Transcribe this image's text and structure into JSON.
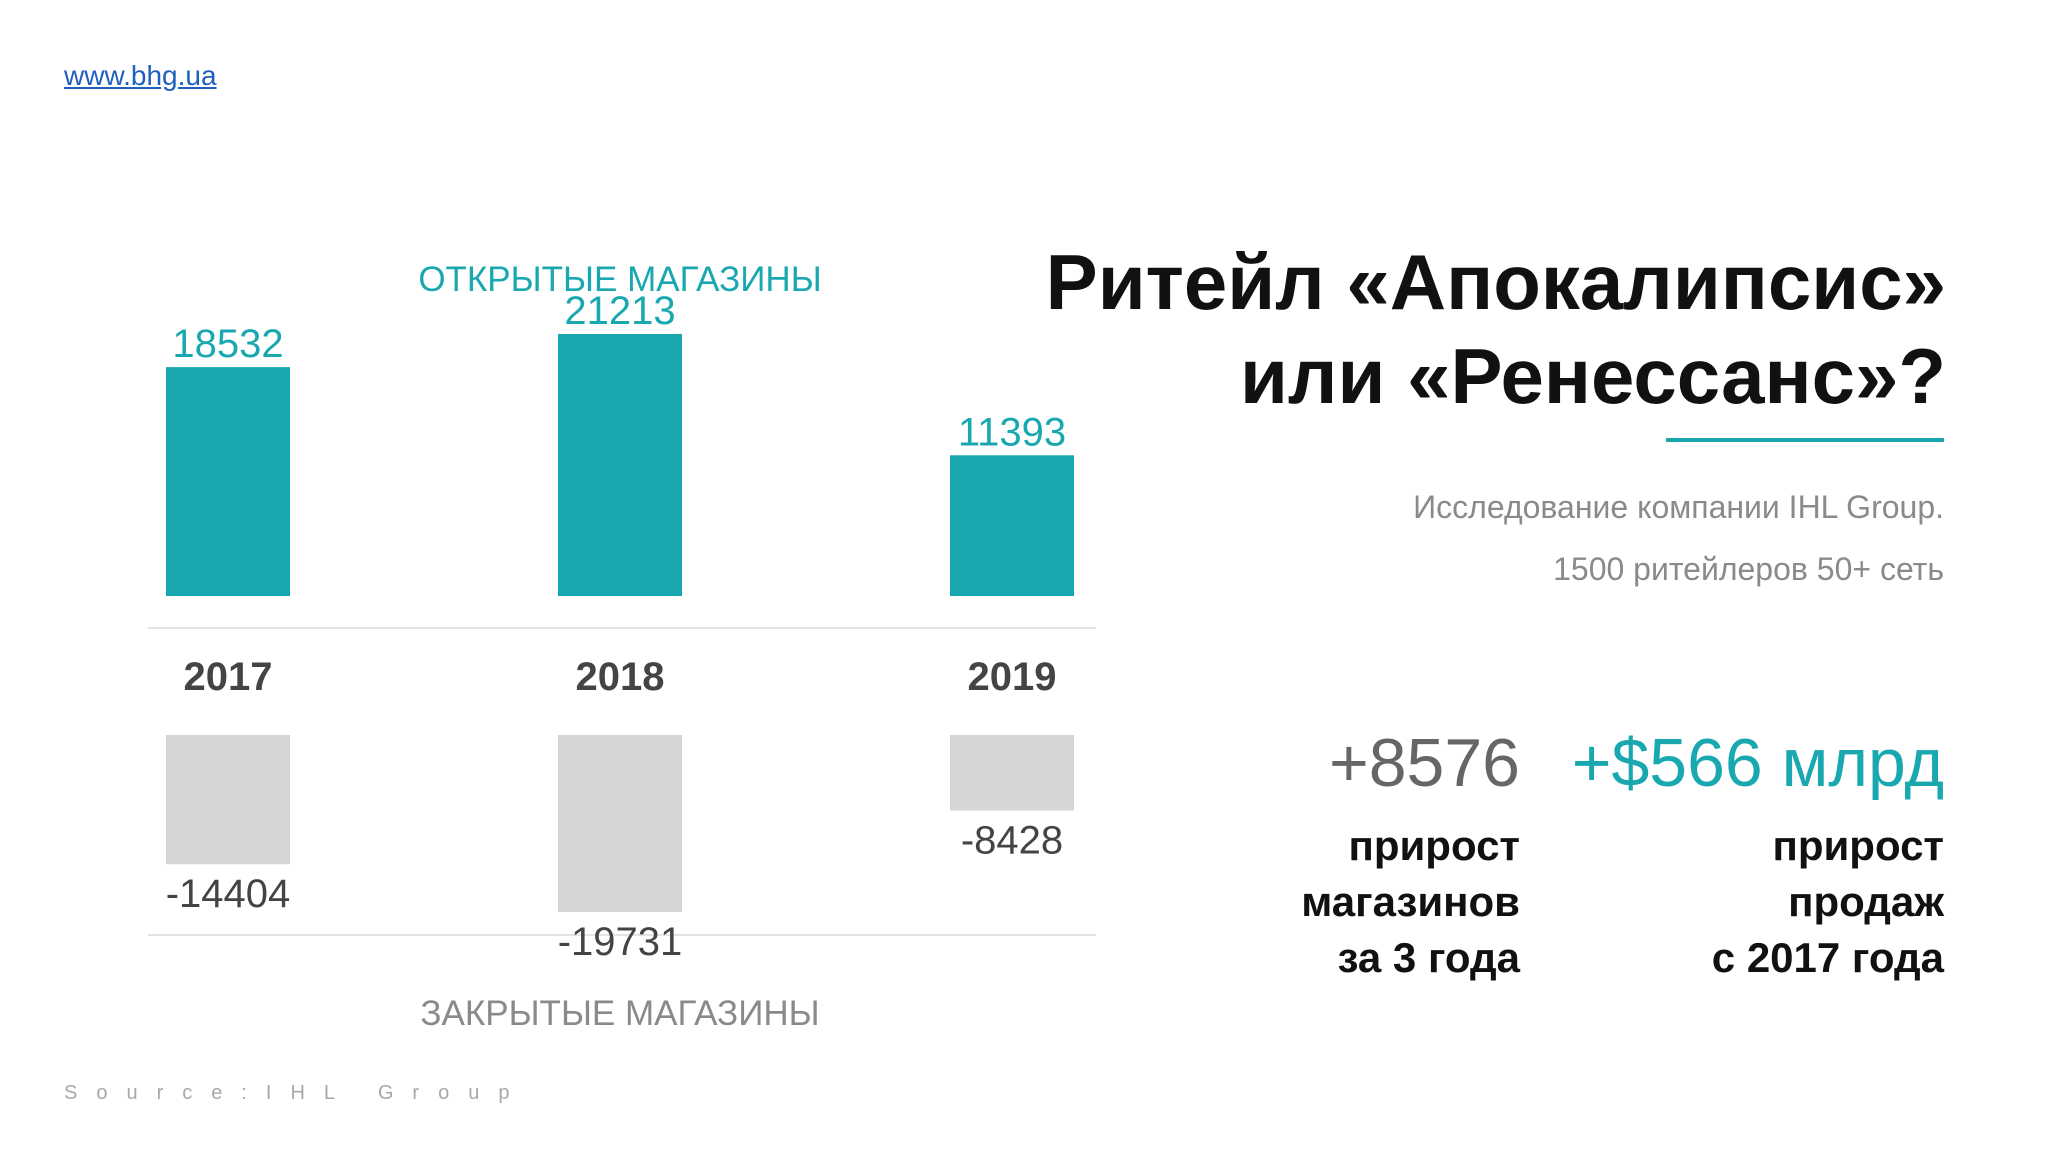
{
  "site": {
    "url_text": "www.bhg.ua"
  },
  "source_note": "Source:IHL Group",
  "title": {
    "line1": "Ритейл «Апокалипсис»",
    "line2": "или «Ренессанс»?"
  },
  "subtitle": {
    "line1": "Исследование компании IHL Group.",
    "line2": "1500 ритейлеров 50+ сеть"
  },
  "stats": {
    "stores": {
      "value": "+8576",
      "label_lines": [
        "прирост",
        "магазинов",
        "за 3 года"
      ]
    },
    "sales": {
      "value": "+$566 млрд",
      "label_lines": [
        "прирост",
        "продаж",
        "с 2017 года"
      ]
    }
  },
  "colors": {
    "accent": "#1aa8b0",
    "closed": "#d6d6d6",
    "closed_text": "#444444",
    "year_text": "#444444",
    "closed_title": "#8a8a8a",
    "link": "#1f5fbf"
  },
  "chart_data": {
    "type": "bar",
    "categories": [
      "2017",
      "2018",
      "2019"
    ],
    "series": [
      {
        "name": "ОТКРЫТЫЕ МАГАЗИНЫ",
        "values": [
          18532,
          21213,
          11393
        ]
      },
      {
        "name": "ЗАКРЫТЫЕ МАГАЗИНЫ",
        "values": [
          -14404,
          -19731,
          -8428
        ]
      }
    ],
    "title": "",
    "xlabel": "",
    "ylabel": "",
    "grid": false,
    "value_labels": true
  }
}
